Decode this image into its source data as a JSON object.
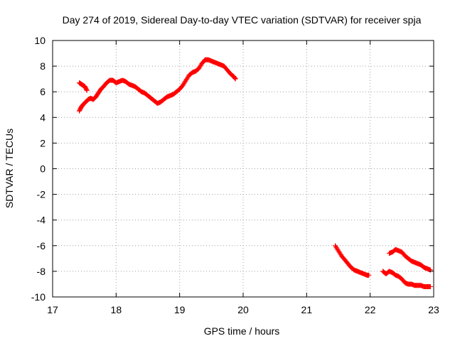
{
  "chart_data": {
    "type": "scatter",
    "title": "Day 274 of 2019, Sidereal Day-to-day VTEC variation (SDTVAR) for receiver spja",
    "xlabel": "GPS time / hours",
    "ylabel": "SDTVAR / TECUs",
    "xlim": [
      17,
      23
    ],
    "ylim": [
      -10,
      10
    ],
    "xticks": [
      "17",
      "18",
      "19",
      "20",
      "21",
      "22",
      "23"
    ],
    "yticks": [
      "-10",
      "-8",
      "-6",
      "-4",
      "-2",
      "0",
      "2",
      "4",
      "6",
      "8",
      "10"
    ],
    "grid": true,
    "marker": "+",
    "marker_color": "#ff0000",
    "series": [
      {
        "x": [
          17.42,
          17.45,
          17.48,
          17.52,
          17.56,
          17.6,
          17.64,
          17.68,
          17.72,
          17.76,
          17.8,
          17.85,
          17.9,
          17.95,
          18.0,
          18.05,
          18.1,
          18.15,
          18.2,
          18.25,
          18.3,
          18.35,
          18.4,
          18.45,
          18.5,
          18.55,
          18.6,
          18.65,
          18.7,
          18.75,
          18.8,
          18.85,
          18.9,
          18.95,
          19.0,
          19.05,
          19.1,
          19.15,
          19.2,
          19.25,
          19.3,
          19.35,
          19.4,
          19.45,
          19.5,
          19.55,
          19.6,
          19.65,
          19.7,
          19.75,
          19.8,
          19.85,
          19.88
        ],
        "y": [
          4.5,
          4.8,
          5.0,
          5.2,
          5.4,
          5.5,
          5.4,
          5.6,
          5.9,
          6.2,
          6.4,
          6.7,
          6.9,
          6.9,
          6.7,
          6.8,
          6.9,
          6.8,
          6.6,
          6.5,
          6.4,
          6.2,
          6.0,
          5.9,
          5.7,
          5.5,
          5.3,
          5.1,
          5.2,
          5.4,
          5.6,
          5.7,
          5.8,
          6.0,
          6.2,
          6.5,
          6.9,
          7.3,
          7.5,
          7.6,
          7.8,
          8.2,
          8.5,
          8.5,
          8.4,
          8.3,
          8.2,
          8.1,
          8.0,
          7.7,
          7.4,
          7.2,
          7.0
        ]
      },
      {
        "x": [
          17.42,
          17.45,
          17.48,
          17.51,
          17.54
        ],
        "y": [
          6.7,
          6.6,
          6.5,
          6.4,
          6.1
        ]
      },
      {
        "x": [
          21.45,
          21.5,
          21.55,
          21.6,
          21.65,
          21.7,
          21.75,
          21.8,
          21.85,
          21.9,
          21.95,
          21.98
        ],
        "y": [
          -6.0,
          -6.4,
          -6.8,
          -7.1,
          -7.4,
          -7.7,
          -7.9,
          -8.0,
          -8.1,
          -8.2,
          -8.3,
          -8.3
        ]
      },
      {
        "x": [
          22.3,
          22.35,
          22.4,
          22.45,
          22.5,
          22.55,
          22.6,
          22.65,
          22.7,
          22.75,
          22.8,
          22.85,
          22.9,
          22.95
        ],
        "y": [
          -6.6,
          -6.5,
          -6.3,
          -6.4,
          -6.5,
          -6.8,
          -7.0,
          -7.2,
          -7.3,
          -7.4,
          -7.5,
          -7.7,
          -7.8,
          -7.9
        ]
      },
      {
        "x": [
          22.2,
          22.25,
          22.3,
          22.35,
          22.4,
          22.45,
          22.5,
          22.55,
          22.6,
          22.65,
          22.7,
          22.75,
          22.8,
          22.85,
          22.9,
          22.95
        ],
        "y": [
          -8.0,
          -8.2,
          -8.0,
          -8.1,
          -8.3,
          -8.4,
          -8.6,
          -8.9,
          -9.0,
          -9.0,
          -9.1,
          -9.1,
          -9.1,
          -9.2,
          -9.2,
          -9.2
        ]
      }
    ]
  }
}
